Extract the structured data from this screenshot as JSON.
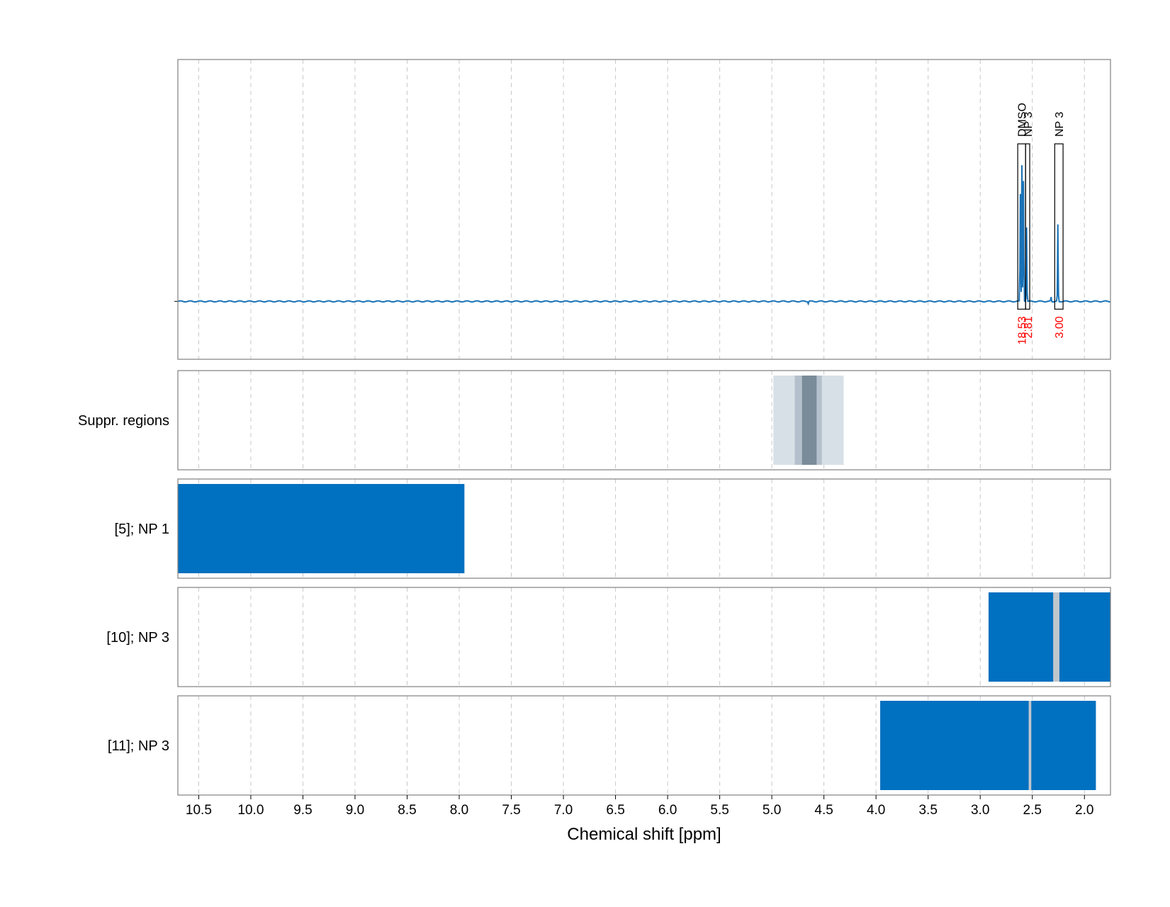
{
  "chart_data": {
    "type": "line",
    "xlabel": "Chemical shift [ppm]",
    "xlim": [
      10.7,
      1.75
    ],
    "x_ticks": [
      10.5,
      10.0,
      9.5,
      9.0,
      8.5,
      8.0,
      7.5,
      7.0,
      6.5,
      6.0,
      5.5,
      5.0,
      4.5,
      4.0,
      3.5,
      3.0,
      2.5,
      2.0
    ],
    "x_tick_labels": [
      "10.5",
      "10.0",
      "9.5",
      "9.0",
      "8.5",
      "8.0",
      "7.5",
      "7.0",
      "6.5",
      "6.0",
      "5.5",
      "5.0",
      "4.5",
      "4.0",
      "3.5",
      "3.0",
      "2.5",
      "2.0"
    ],
    "grid": true,
    "line_color": "#1a73b8",
    "spectrum": {
      "baseline": 0,
      "ylim": [
        -0.28,
        1.17
      ],
      "peaks": [
        {
          "x": 2.615,
          "y": 0.52
        },
        {
          "x": 2.6,
          "y": 0.66
        },
        {
          "x": 2.585,
          "y": 0.58
        },
        {
          "x": 2.555,
          "y": 0.36
        },
        {
          "x": 2.255,
          "y": 0.37
        },
        {
          "x": 2.32,
          "y": 0.02
        },
        {
          "x": 4.65,
          "y": -0.01
        }
      ]
    },
    "integration_regions": [
      {
        "label": "DMSO",
        "x_start": 2.64,
        "x_end": 2.565,
        "value": "18.53"
      },
      {
        "label": "NP 3",
        "x_start": 2.565,
        "x_end": 2.525,
        "value": "2.81"
      },
      {
        "label": "NP 3",
        "x_start": 2.285,
        "x_end": 2.205,
        "value": "3.00"
      }
    ],
    "tracks": [
      {
        "label": "Suppr. regions",
        "bands": [
          {
            "x_start": 4.985,
            "x_end": 4.31,
            "color": "#d8e0e7"
          },
          {
            "x_start": 4.78,
            "x_end": 4.52,
            "color": "#b4c1cc"
          },
          {
            "x_start": 4.71,
            "x_end": 4.57,
            "color": "#7a8c99"
          }
        ]
      },
      {
        "label": "[5]; NP 1",
        "bands": [
          {
            "x_start": 10.7,
            "x_end": 7.95,
            "color": "#0070c0"
          }
        ]
      },
      {
        "label": "[10]; NP 3",
        "bands": [
          {
            "x_start": 2.92,
            "x_end": 1.75,
            "color": "#0070c0"
          },
          {
            "x_start": 2.3,
            "x_end": 2.24,
            "color": "#c0c6cc"
          }
        ]
      },
      {
        "label": "[11]; NP 3",
        "bands": [
          {
            "x_start": 3.96,
            "x_end": 1.89,
            "color": "#0070c0"
          },
          {
            "x_start": 2.535,
            "x_end": 2.51,
            "color": "#c0c6cc"
          }
        ]
      }
    ],
    "colors": {
      "axis": "#808080",
      "grid": "#c8c8c8",
      "integral_value": "#ff0000",
      "region_box": "#000000"
    }
  }
}
